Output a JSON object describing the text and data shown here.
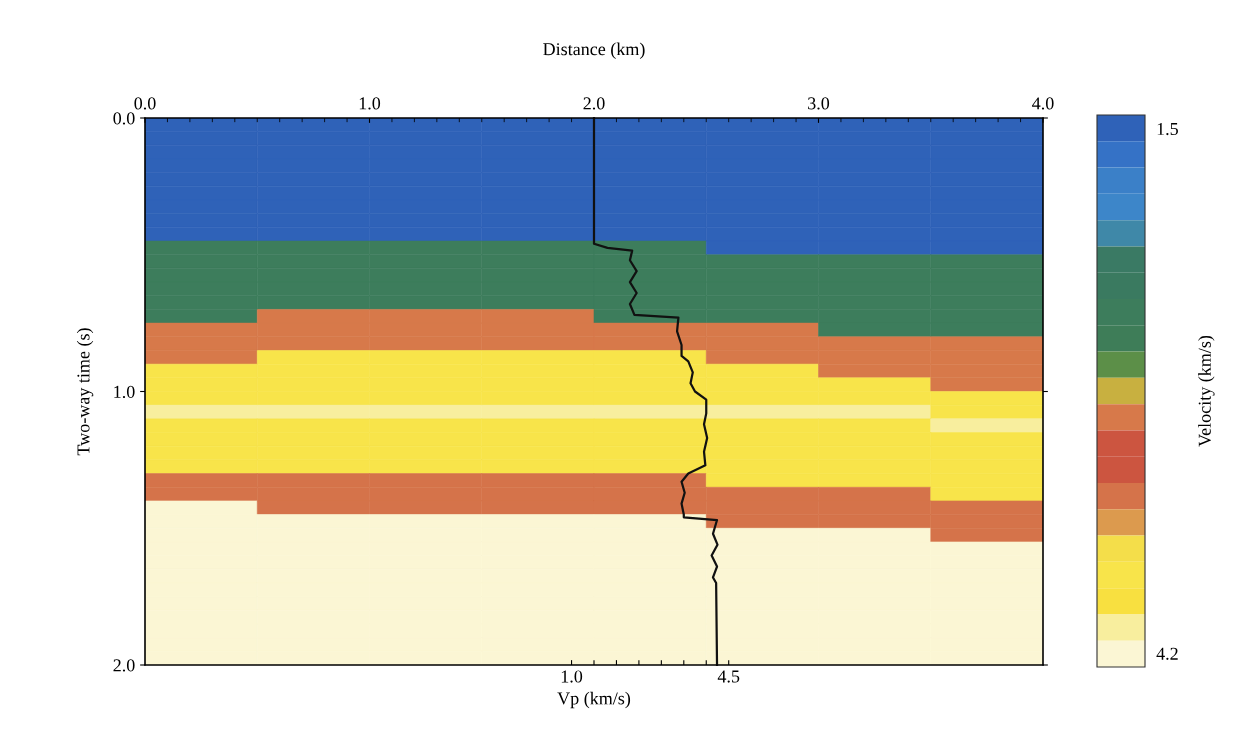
{
  "chart_data": {
    "type": "heatmap",
    "clabel": "Velocity (km/s)",
    "clim": [
      1.43,
      4.27
    ],
    "cticks": [
      {
        "value": 1.5,
        "label": "1.5"
      },
      {
        "value": 4.2,
        "label": "4.2"
      }
    ],
    "colors": [
      "#2f62b8",
      "#3572c6",
      "#3b80c8",
      "#3d86c9",
      "#3f88a8",
      "#3a7a64",
      "#3a7a60",
      "#3d7d5c",
      "#3e7d58",
      "#5c8f48",
      "#c8b040",
      "#d7794a",
      "#cc5540",
      "#cc5540",
      "#d5734a",
      "#dc9a4e",
      "#f4de4a",
      "#f8e44a",
      "#f8e040",
      "#f8ee9e",
      "#fbf6d4"
    ],
    "x2label": "Distance (km)",
    "ylabel": "Two-way time (s)",
    "xlabel": "Vp (km/s)",
    "x2lim": [
      0.0,
      4.0
    ],
    "x2ticks": [
      {
        "value": 0.0,
        "label": "0.0"
      },
      {
        "value": 1.0,
        "label": "1.0"
      },
      {
        "value": 2.0,
        "label": "2.0"
      },
      {
        "value": 3.0,
        "label": "3.0"
      },
      {
        "value": 4.0,
        "label": "4.0"
      }
    ],
    "ylim": [
      2.0,
      0.0
    ],
    "yticks": [
      {
        "value": 0.0,
        "label": "0.0"
      },
      {
        "value": 1.0,
        "label": "1.0"
      },
      {
        "value": 2.0,
        "label": "2.0"
      }
    ],
    "xlim": [
      -8.5,
      11.5
    ],
    "xticks": [
      {
        "value": 1.0,
        "label": "1.0"
      },
      {
        "value": 1.5,
        "label": null
      },
      {
        "value": 2.0,
        "label": null
      },
      {
        "value": 2.5,
        "label": null
      },
      {
        "value": 3.0,
        "label": null
      },
      {
        "value": 3.5,
        "label": null
      },
      {
        "value": 4.0,
        "label": null
      },
      {
        "value": 4.5,
        "label": "4.5"
      }
    ],
    "cells": [
      [
        1.5,
        1.5,
        1.5,
        1.5,
        1.5,
        1.5,
        1.5,
        1.5
      ],
      [
        1.5,
        1.5,
        1.5,
        1.5,
        1.5,
        1.5,
        1.5,
        1.5
      ],
      [
        1.5,
        1.5,
        1.5,
        1.5,
        1.5,
        1.5,
        1.5,
        1.5
      ],
      [
        1.5,
        1.5,
        1.5,
        1.5,
        1.5,
        1.5,
        1.5,
        1.5
      ],
      [
        1.5,
        1.5,
        1.5,
        1.5,
        1.5,
        1.5,
        1.5,
        1.5
      ],
      [
        1.5,
        1.5,
        1.5,
        1.5,
        1.5,
        1.5,
        1.5,
        1.5
      ],
      [
        1.5,
        1.5,
        1.5,
        1.5,
        1.5,
        1.5,
        1.5,
        1.5
      ],
      [
        1.5,
        1.5,
        1.5,
        1.5,
        1.5,
        1.5,
        1.5,
        1.5
      ],
      [
        1.5,
        1.5,
        1.5,
        1.5,
        1.5,
        1.5,
        1.5,
        1.5
      ],
      [
        2.445,
        2.445,
        2.445,
        2.445,
        2.445,
        1.5,
        1.5,
        1.5
      ],
      [
        2.445,
        2.445,
        2.445,
        2.445,
        2.445,
        2.445,
        2.445,
        2.445
      ],
      [
        2.445,
        2.445,
        2.445,
        2.445,
        2.445,
        2.445,
        2.445,
        2.445
      ],
      [
        2.445,
        2.445,
        2.445,
        2.445,
        2.445,
        2.445,
        2.445,
        2.445
      ],
      [
        2.445,
        2.445,
        2.445,
        2.445,
        2.445,
        2.445,
        2.445,
        2.445
      ],
      [
        2.445,
        2.985,
        2.985,
        2.985,
        2.445,
        2.445,
        2.445,
        2.445
      ],
      [
        2.985,
        2.985,
        2.985,
        2.985,
        2.985,
        2.985,
        2.445,
        2.445
      ],
      [
        2.985,
        2.985,
        2.985,
        2.985,
        2.985,
        2.985,
        2.985,
        2.985
      ],
      [
        2.985,
        3.795,
        3.795,
        3.795,
        3.795,
        2.985,
        2.985,
        2.985
      ],
      [
        3.795,
        3.795,
        3.795,
        3.795,
        3.795,
        3.795,
        2.985,
        2.985
      ],
      [
        3.795,
        3.795,
        3.795,
        3.795,
        3.795,
        3.795,
        3.795,
        2.985
      ],
      [
        3.795,
        3.795,
        3.795,
        3.795,
        3.795,
        3.795,
        3.795,
        3.795
      ],
      [
        4.065,
        4.065,
        4.065,
        4.065,
        4.065,
        4.065,
        4.065,
        3.795
      ],
      [
        3.795,
        3.795,
        3.795,
        3.795,
        3.795,
        3.795,
        3.795,
        4.065
      ],
      [
        3.795,
        3.795,
        3.795,
        3.795,
        3.795,
        3.795,
        3.795,
        3.795
      ],
      [
        3.795,
        3.795,
        3.795,
        3.795,
        3.795,
        3.795,
        3.795,
        3.795
      ],
      [
        3.795,
        3.795,
        3.795,
        3.795,
        3.795,
        3.795,
        3.795,
        3.795
      ],
      [
        3.39,
        3.39,
        3.39,
        3.39,
        3.39,
        3.795,
        3.795,
        3.795
      ],
      [
        3.39,
        3.39,
        3.39,
        3.39,
        3.39,
        3.39,
        3.39,
        3.795
      ],
      [
        4.2,
        3.39,
        3.39,
        3.39,
        3.39,
        3.39,
        3.39,
        3.39
      ],
      [
        4.2,
        4.2,
        4.2,
        4.2,
        4.2,
        3.39,
        3.39,
        3.39
      ],
      [
        4.2,
        4.2,
        4.2,
        4.2,
        4.2,
        4.2,
        4.2,
        3.39
      ],
      [
        4.2,
        4.2,
        4.2,
        4.2,
        4.2,
        4.2,
        4.2,
        4.2
      ],
      [
        4.2,
        4.2,
        4.2,
        4.2,
        4.2,
        4.2,
        4.2,
        4.2
      ],
      [
        4.2,
        4.2,
        4.2,
        4.2,
        4.2,
        4.2,
        4.2,
        4.2
      ],
      [
        4.2,
        4.2,
        4.2,
        4.2,
        4.2,
        4.2,
        4.2,
        4.2
      ],
      [
        4.2,
        4.2,
        4.2,
        4.2,
        4.2,
        4.2,
        4.2,
        4.2
      ],
      [
        4.2,
        4.2,
        4.2,
        4.2,
        4.2,
        4.2,
        4.2,
        4.2
      ],
      [
        4.2,
        4.2,
        4.2,
        4.2,
        4.2,
        4.2,
        4.2,
        4.2
      ],
      [
        4.2,
        4.2,
        4.2,
        4.2,
        4.2,
        4.2,
        4.2,
        4.2
      ],
      [
        4.2,
        4.2,
        4.2,
        4.2,
        4.2,
        4.2,
        4.2,
        4.2
      ]
    ],
    "series": [
      {
        "type": "line",
        "color": "#111111",
        "x": [
          1.5,
          1.5,
          1.8,
          2.35,
          2.3,
          2.45,
          2.3,
          2.45,
          2.3,
          2.4,
          3.38,
          3.35,
          3.45,
          3.45,
          3.6,
          3.7,
          3.65,
          3.75,
          4.0,
          4.0,
          3.95,
          4.02,
          3.95,
          3.98,
          3.6,
          3.45,
          3.52,
          3.45,
          3.5,
          3.5,
          4.24,
          4.15,
          4.25,
          4.12,
          4.24,
          4.15,
          4.22,
          4.24
        ],
        "values": [
          0.0,
          0.46,
          0.475,
          0.485,
          0.52,
          0.56,
          0.6,
          0.64,
          0.68,
          0.72,
          0.73,
          0.78,
          0.83,
          0.87,
          0.89,
          0.93,
          0.97,
          1.0,
          1.03,
          1.08,
          1.12,
          1.17,
          1.22,
          1.27,
          1.3,
          1.33,
          1.37,
          1.41,
          1.45,
          1.46,
          1.47,
          1.52,
          1.56,
          1.6,
          1.64,
          1.68,
          1.7,
          2.0
        ]
      }
    ]
  }
}
